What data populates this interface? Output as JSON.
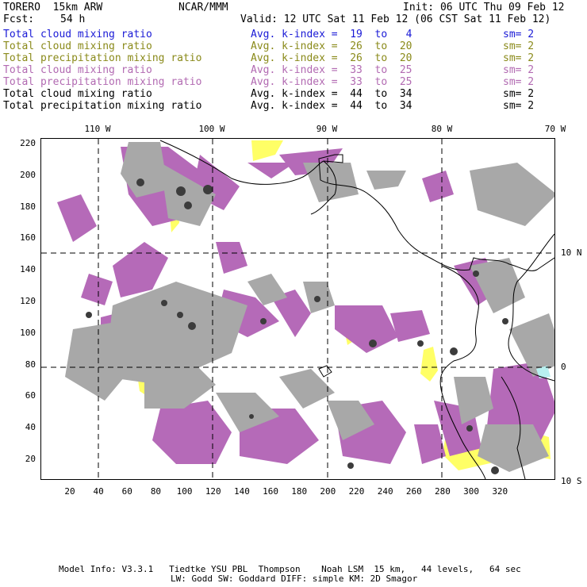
{
  "header": {
    "model": "TORERO  15km ARW",
    "org": "NCAR/MMM",
    "init": "Init: 06 UTC Thu 09 Feb 12",
    "fcst_label": "Fcst:",
    "fcst_value": "54 h",
    "valid": "Valid: 12 UTC Sat 11 Feb 12 (06 CST Sat 11 Feb 12)"
  },
  "legend": [
    {
      "field": "Total cloud mixing ratio",
      "idx": "Avg. k-index =  19  to   4",
      "sm": "sm= 2",
      "color": "#1a1ad6"
    },
    {
      "field": "Total cloud mixing ratio",
      "idx": "Avg. k-index =  26  to  20",
      "sm": "sm= 2",
      "color": "#8a8a1a"
    },
    {
      "field": "Total precipitation mixing ratio",
      "idx": "Avg. k-index =  26  to  20",
      "sm": "sm= 2",
      "color": "#8a8a1a"
    },
    {
      "field": "Total cloud mixing ratio",
      "idx": "Avg. k-index =  33  to  25",
      "sm": "sm= 2",
      "color": "#b26ab2"
    },
    {
      "field": "Total precipitation mixing ratio",
      "idx": "Avg. k-index =  33  to  25",
      "sm": "sm= 2",
      "color": "#b26ab2"
    },
    {
      "field": "Total cloud mixing ratio",
      "idx": "Avg. k-index =  44  to  34",
      "sm": "sm= 2",
      "color": "#000000"
    },
    {
      "field": "Total precipitation mixing ratio",
      "idx": "Avg. k-index =  44  to  34",
      "sm": "sm= 2",
      "color": "#000000"
    }
  ],
  "map": {
    "lon_labels": [
      "110 W",
      "100 W",
      "90 W",
      "80 W",
      "70 W"
    ],
    "lat_labels": [
      "10 N",
      "0",
      "10 S"
    ],
    "x_ticks": [
      "20",
      "40",
      "60",
      "80",
      "100",
      "120",
      "140",
      "160",
      "180",
      "200",
      "220",
      "240",
      "260",
      "280",
      "300",
      "320"
    ],
    "y_ticks": [
      "220",
      "200",
      "180",
      "160",
      "140",
      "120",
      "100",
      "80",
      "60",
      "40",
      "20"
    ],
    "colors": {
      "gray": "#a8a8a8",
      "dark": "#3c3c3c",
      "magenta": "#b56ab8",
      "yellow": "#ffff66",
      "cyan": "#b8f0f0",
      "coast": "#000000"
    }
  },
  "footer": {
    "line1": "Model Info: V3.3.1   Tiedtke YSU PBL  Thompson    Noah LSM  15 km,   44 levels,   64 sec",
    "line2": "LW: Godd SW: Goddard DIFF: simple KM: 2D Smagor"
  }
}
